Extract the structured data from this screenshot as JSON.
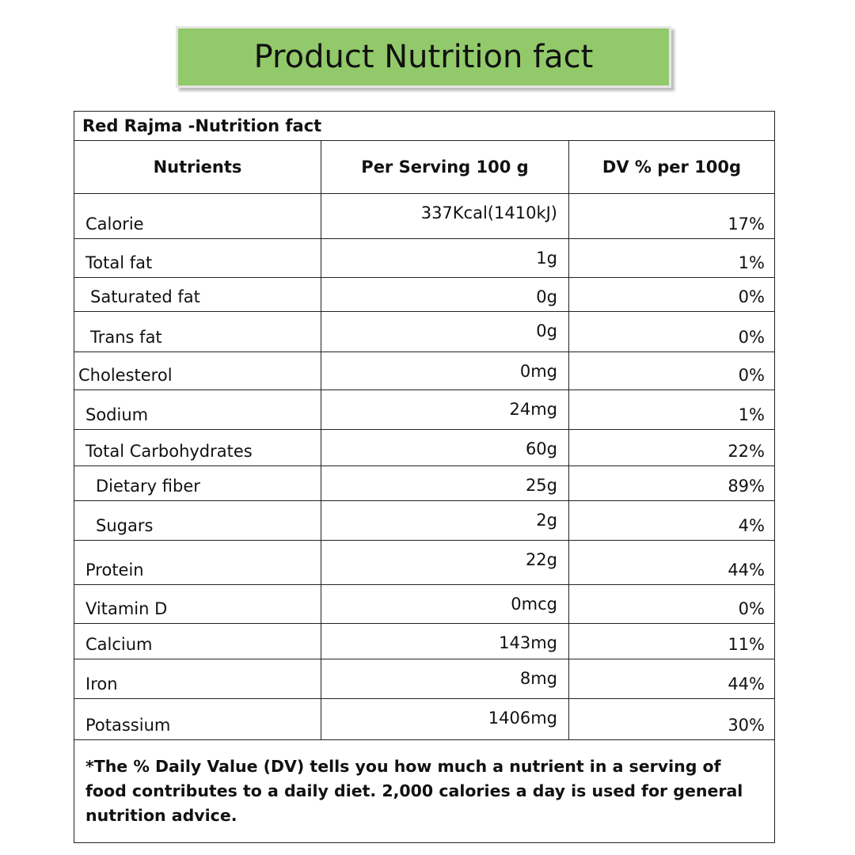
{
  "header": {
    "title": "Product Nutrition fact"
  },
  "table": {
    "title": "Red Rajma -Nutrition fact",
    "columns": [
      "Nutrients",
      "Per Serving 100 g",
      "DV % per 100g"
    ],
    "rows": [
      [
        "Calorie",
        "337Kcal(1410kJ)",
        "17%"
      ],
      [
        "Total fat",
        "1g",
        "1%"
      ],
      [
        "Saturated fat",
        "0g",
        "0%"
      ],
      [
        "Trans fat",
        "0g",
        "0%"
      ],
      [
        "Cholesterol",
        "0mg",
        "0%"
      ],
      [
        "Sodium",
        "24mg",
        "1%"
      ],
      [
        "Total Carbohydrates",
        "60g",
        "22%"
      ],
      [
        "Dietary fiber",
        "25g",
        "89%"
      ],
      [
        "Sugars",
        "2g",
        "4%"
      ],
      [
        "Protein",
        "22g",
        "44%"
      ],
      [
        "Vitamin D",
        "0mcg",
        "0%"
      ],
      [
        "Calcium",
        "143mg",
        "11%"
      ],
      [
        "Iron",
        "8mg",
        "44%"
      ],
      [
        "Potassium",
        "1406mg",
        "30%"
      ]
    ],
    "footnote": "*The % Daily Value (DV) tells you how much a nutrient in a serving of food contributes to a daily diet. 2,000 calories a day is used for general nutrition advice."
  }
}
